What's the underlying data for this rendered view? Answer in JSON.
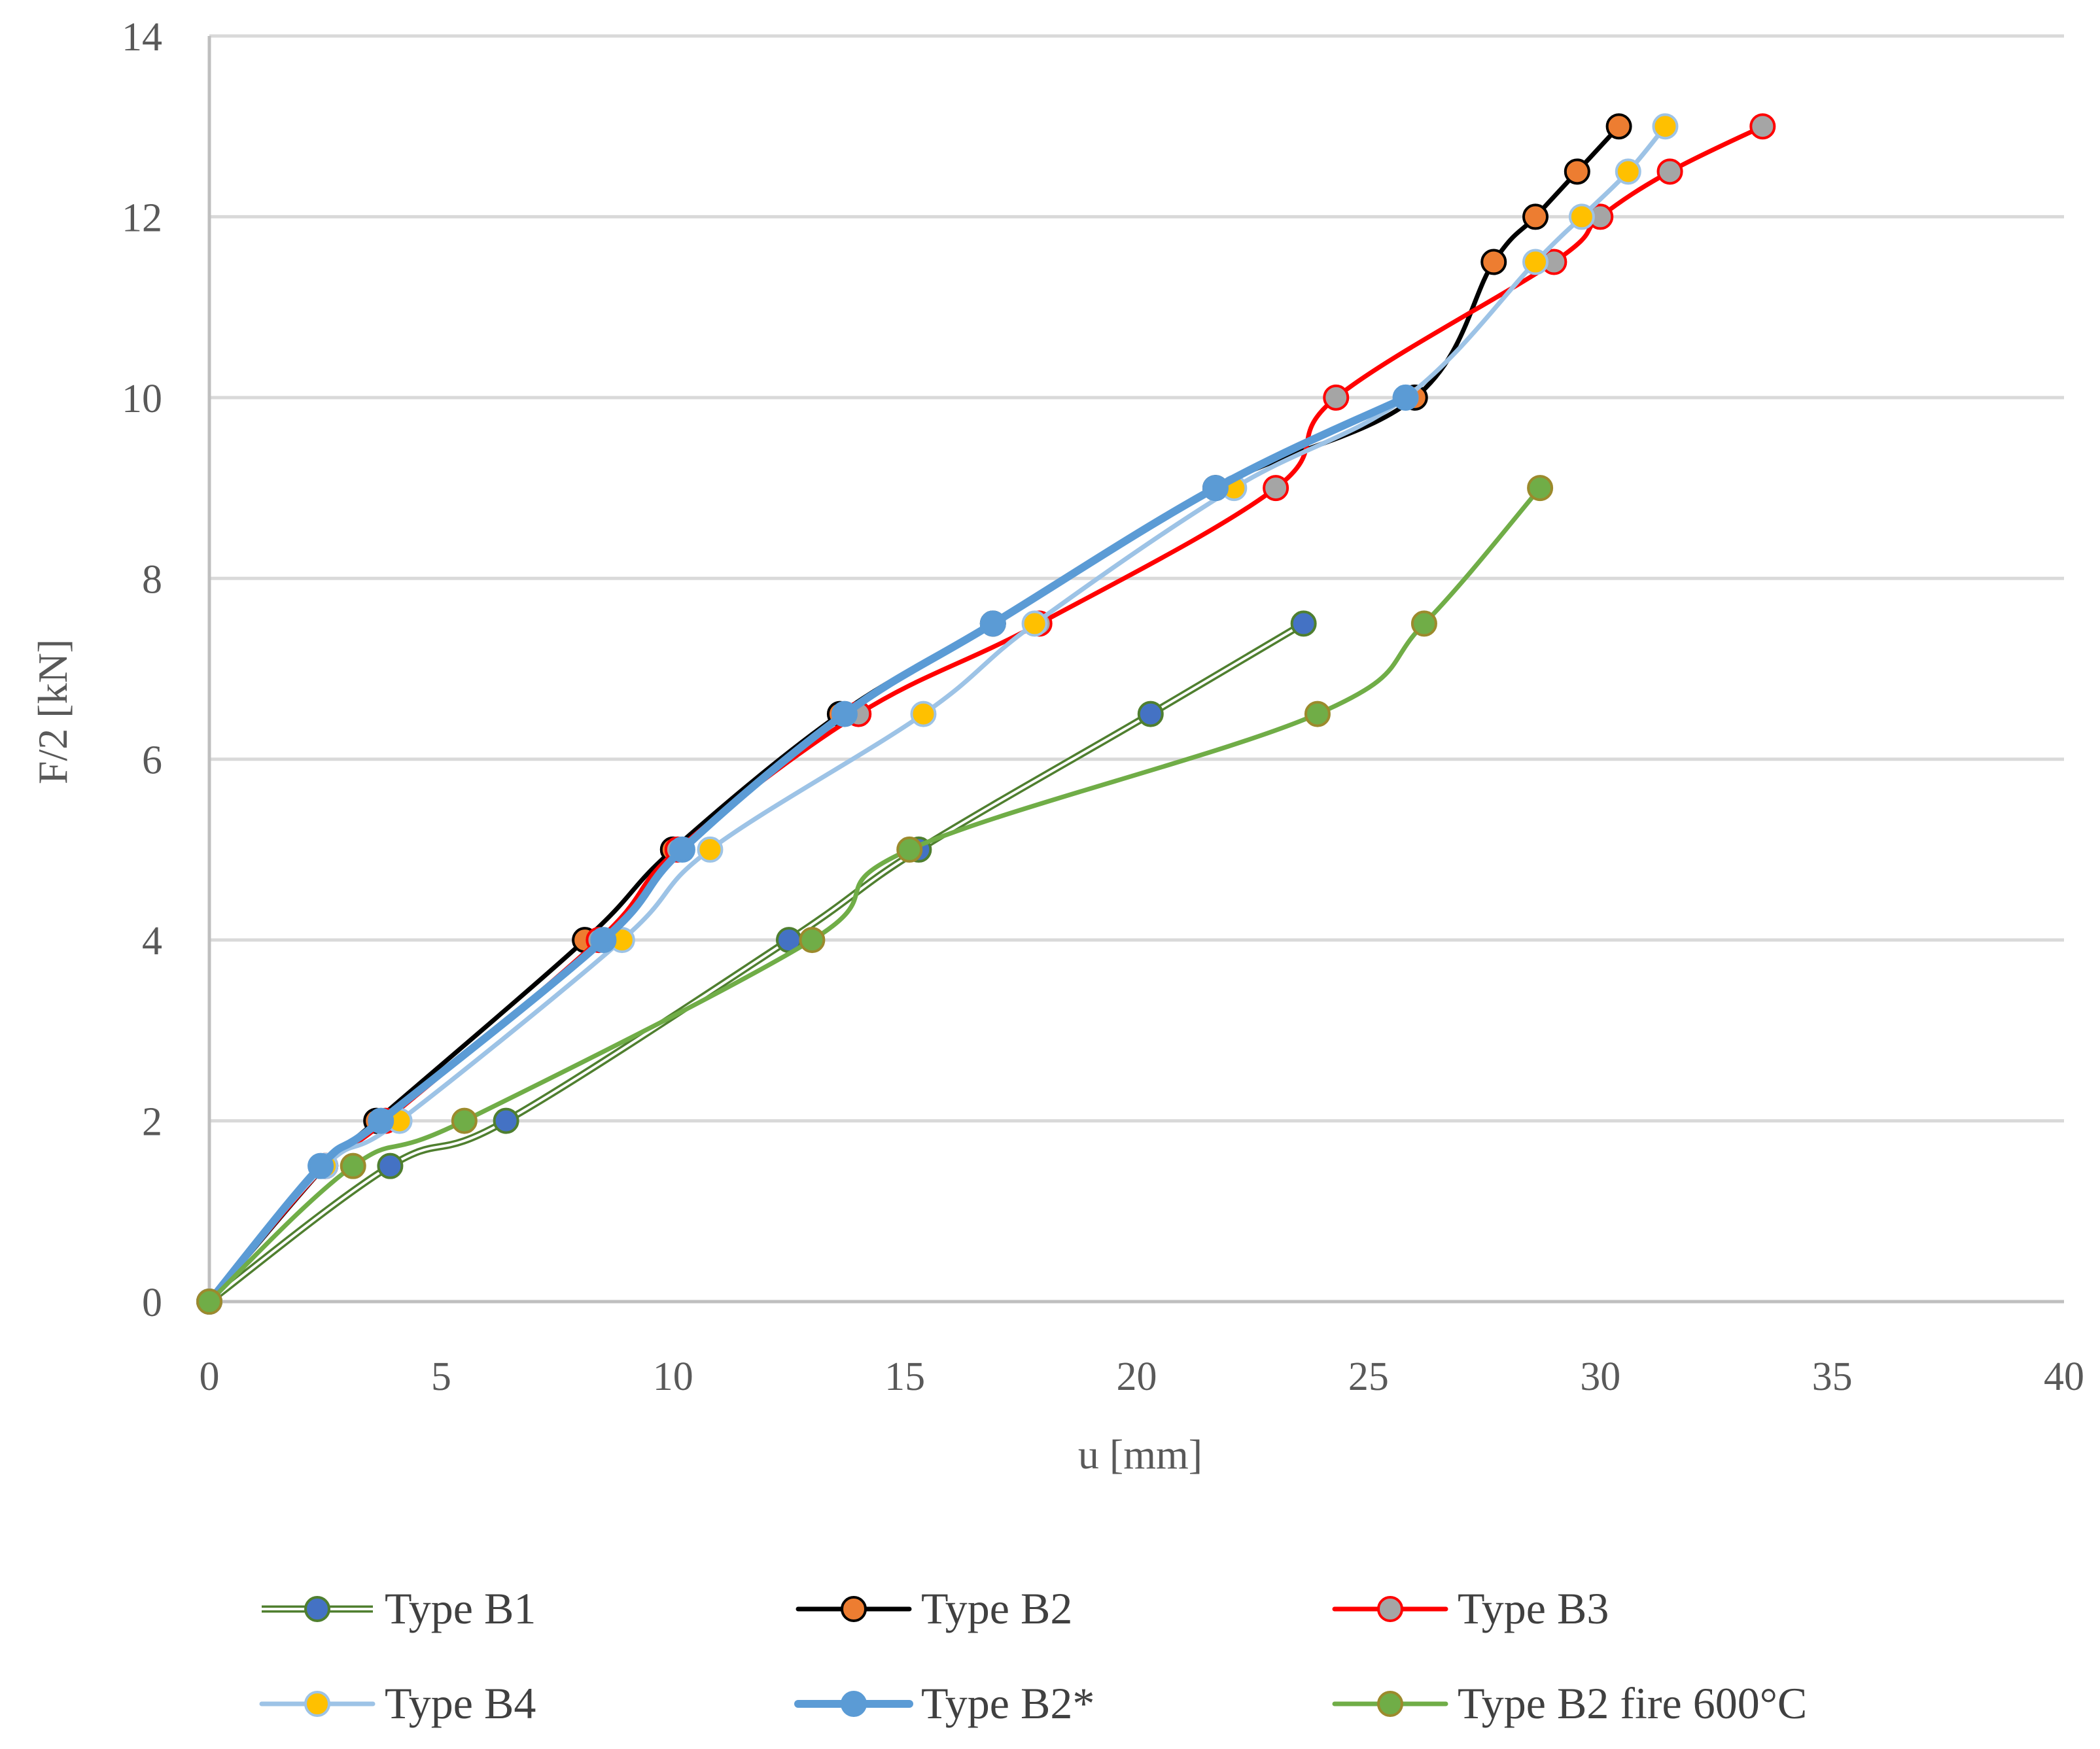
{
  "chart_data": {
    "type": "line",
    "title": "",
    "xlabel": "u [mm]",
    "ylabel": "F/2 [kN]",
    "xlim": [
      0,
      40
    ],
    "ylim": [
      0,
      14
    ],
    "xticks": [
      0,
      5,
      10,
      15,
      20,
      25,
      30,
      35,
      40
    ],
    "yticks": [
      0,
      2,
      4,
      6,
      8,
      10,
      12,
      14
    ],
    "grid": "horizontal",
    "legend_position": "bottom",
    "series": [
      {
        "name": "Type B1",
        "line_color": "#4f7f2f",
        "line_style": "double",
        "marker_color": "#4472c4",
        "marker_edge": "#4f7f2f",
        "x": [
          0,
          3.9,
          6.4,
          12.5,
          15.3,
          20.3,
          23.6
        ],
        "y": [
          0,
          1.5,
          2,
          4,
          5,
          6.5,
          7.5
        ]
      },
      {
        "name": "Type B2",
        "line_color": "#000000",
        "line_style": "solid",
        "marker_color": "#ed7d31",
        "marker_edge": "#000000",
        "x": [
          0,
          2.5,
          3.6,
          8.1,
          10,
          13.6,
          16.9,
          21.7,
          26,
          27.7,
          28.6,
          29.5,
          30.4
        ],
        "y": [
          0,
          1.5,
          2,
          4,
          5,
          6.5,
          7.5,
          9,
          10,
          11.5,
          12,
          12.5,
          13
        ]
      },
      {
        "name": "Type B3",
        "line_color": "#ff0000",
        "line_style": "solid",
        "marker_color": "#a5a5a5",
        "marker_edge": "#ff0000",
        "x": [
          0,
          2.5,
          3.8,
          8.4,
          10.1,
          14,
          17.9,
          23,
          24.3,
          29,
          30,
          31.5,
          33.5
        ],
        "y": [
          0,
          1.5,
          2,
          4,
          5,
          6.5,
          7.5,
          9,
          10,
          11.5,
          12,
          12.5,
          13
        ]
      },
      {
        "name": "Type B4",
        "line_color": "#9dc3e6",
        "line_style": "solid",
        "marker_color": "#ffc000",
        "marker_edge": "#9dc3e6",
        "x": [
          0,
          2.5,
          4.1,
          8.9,
          10.8,
          15.4,
          17.8,
          22.1,
          25.8,
          28.6,
          29.6,
          30.6,
          31.4
        ],
        "y": [
          0,
          1.5,
          2,
          4,
          5,
          6.5,
          7.5,
          9,
          10,
          11.5,
          12,
          12.5,
          13
        ]
      },
      {
        "name": "Type B2*",
        "line_color": "#5b9bd5",
        "line_style": "thick",
        "marker_color": "#5b9bd5",
        "marker_edge": "#5b9bd5",
        "x": [
          0,
          2.4,
          3.7,
          8.5,
          10.2,
          13.7,
          16.9,
          21.7,
          25.8
        ],
        "y": [
          0,
          1.5,
          2,
          4,
          5,
          6.5,
          7.5,
          9,
          10
        ]
      },
      {
        "name": "Type B2 fire 600°C",
        "line_color": "#70ad47",
        "line_style": "solid",
        "marker_color": "#70ad47",
        "marker_edge": "#9c8a2c",
        "x": [
          0,
          3.1,
          5.5,
          13,
          15.1,
          23.9,
          26.2,
          28.7
        ],
        "y": [
          0,
          1.5,
          2,
          4,
          5,
          6.5,
          7.5,
          9
        ]
      }
    ]
  }
}
